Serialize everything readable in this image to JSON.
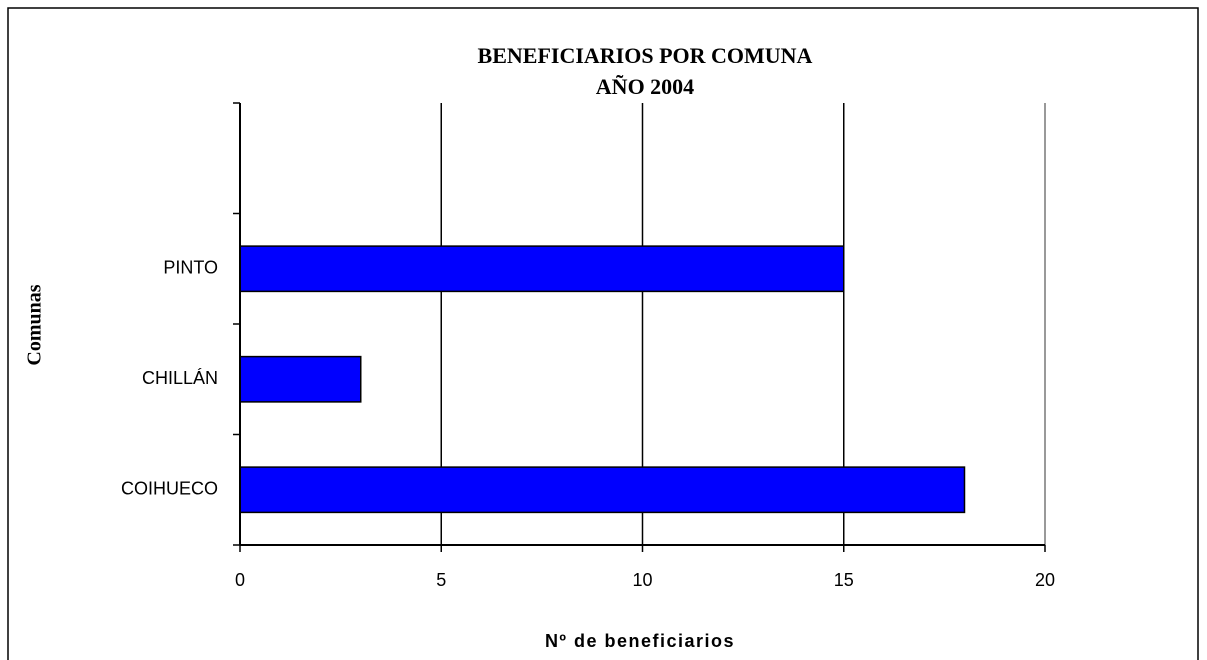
{
  "chart_data": {
    "type": "barh",
    "title": "BENEFICIARIOS POR COMUNA",
    "subtitle": "AÑO 2004",
    "x_label": "Nº de beneficiarios",
    "y_label": "Comunas",
    "categories": [
      "COIHUECO",
      "CHILLÁN",
      "PINTO",
      null
    ],
    "values": [
      18,
      3,
      15,
      null
    ],
    "color": "#0000ff",
    "xlim": [
      0,
      20
    ],
    "xticks": [
      0,
      5,
      10,
      15,
      20
    ],
    "grid": true
  }
}
